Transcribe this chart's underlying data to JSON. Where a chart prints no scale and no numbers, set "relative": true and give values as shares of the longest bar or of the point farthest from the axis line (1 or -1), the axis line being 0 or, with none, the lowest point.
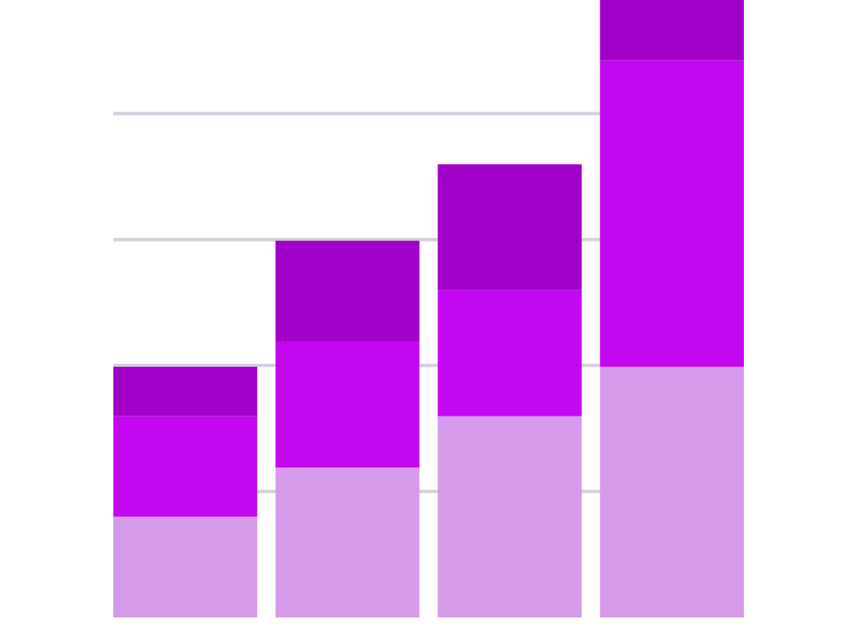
{
  "chart_data": {
    "type": "bar",
    "stacked": true,
    "relative": true,
    "categories": [
      null,
      null,
      null,
      null
    ],
    "series": [
      {
        "color": "#d39be9",
        "values": [
          0.163,
          0.243,
          0.326,
          0.406
        ]
      },
      {
        "color": "#c307f0",
        "values": [
          0.163,
          0.204,
          0.204,
          0.496
        ]
      },
      {
        "color": "#a100c8",
        "values": [
          0.08,
          0.163,
          0.204,
          0.098
        ]
      }
    ],
    "grid": "y"
  }
}
